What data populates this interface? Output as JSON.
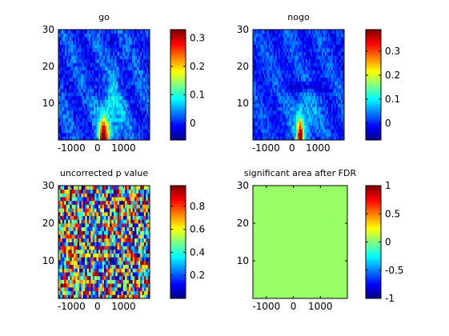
{
  "figure": {
    "background": "#ffffff",
    "colormap": "jet"
  },
  "chart_data": [
    {
      "type": "heatmap",
      "title": "go",
      "x_range": [
        -1500,
        2000
      ],
      "y_range": [
        0,
        30
      ],
      "xticks": [
        -1000,
        0,
        1000
      ],
      "xtick_labels": [
        "-1000",
        "0",
        "1000"
      ],
      "yticks": [
        10,
        20,
        30
      ],
      "ytick_labels": [
        "10",
        "20",
        "30"
      ],
      "colorbar": {
        "min": -0.06,
        "max": 0.33,
        "ticks": [
          0,
          0.1,
          0.2,
          0.3
        ],
        "tick_labels": [
          "0",
          "0.1",
          "0.2",
          "0.3"
        ]
      },
      "pattern": "power_go"
    },
    {
      "type": "heatmap",
      "title": "nogo",
      "x_range": [
        -1500,
        2000
      ],
      "y_range": [
        0,
        30
      ],
      "xticks": [
        -1000,
        0,
        1000
      ],
      "xtick_labels": [
        "-1000",
        "0",
        "1000"
      ],
      "yticks": [
        10,
        20,
        30
      ],
      "ytick_labels": [
        "10",
        "20",
        "30"
      ],
      "colorbar": {
        "min": -0.07,
        "max": 0.39,
        "ticks": [
          0,
          0.1,
          0.2,
          0.3
        ],
        "tick_labels": [
          "0",
          "0.1",
          "0.2",
          "0.3"
        ]
      },
      "pattern": "power_nogo"
    },
    {
      "type": "heatmap",
      "title": "uncorrected p value",
      "x_range": [
        -1500,
        2000
      ],
      "y_range": [
        0,
        30
      ],
      "xticks": [
        -1000,
        0,
        1000
      ],
      "xtick_labels": [
        "-1000",
        "0",
        "1000"
      ],
      "yticks": [
        10,
        20,
        30
      ],
      "ytick_labels": [
        "10",
        "20",
        "30"
      ],
      "colorbar": {
        "min": 0.0,
        "max": 0.98,
        "ticks": [
          0.2,
          0.4,
          0.6,
          0.8
        ],
        "tick_labels": [
          "0.2",
          "0.4",
          "0.6",
          "0.8"
        ]
      },
      "pattern": "pvalue"
    },
    {
      "type": "heatmap",
      "title": "significant area after FDR",
      "x_range": [
        -1500,
        2000
      ],
      "y_range": [
        0,
        30
      ],
      "xticks": [
        -1000,
        0,
        1000
      ],
      "xtick_labels": [
        "-1000",
        "0",
        "1000"
      ],
      "yticks": [
        10,
        20,
        30
      ],
      "ytick_labels": [
        "10",
        "20",
        "30"
      ],
      "colorbar": {
        "min": -1,
        "max": 1,
        "ticks": [
          -1,
          -0.5,
          0,
          0.5,
          1
        ],
        "tick_labels": [
          "-1",
          "-0.5",
          "0",
          "0.5",
          "1"
        ]
      },
      "uniform_value": 0.05,
      "pattern": "uniform"
    }
  ]
}
